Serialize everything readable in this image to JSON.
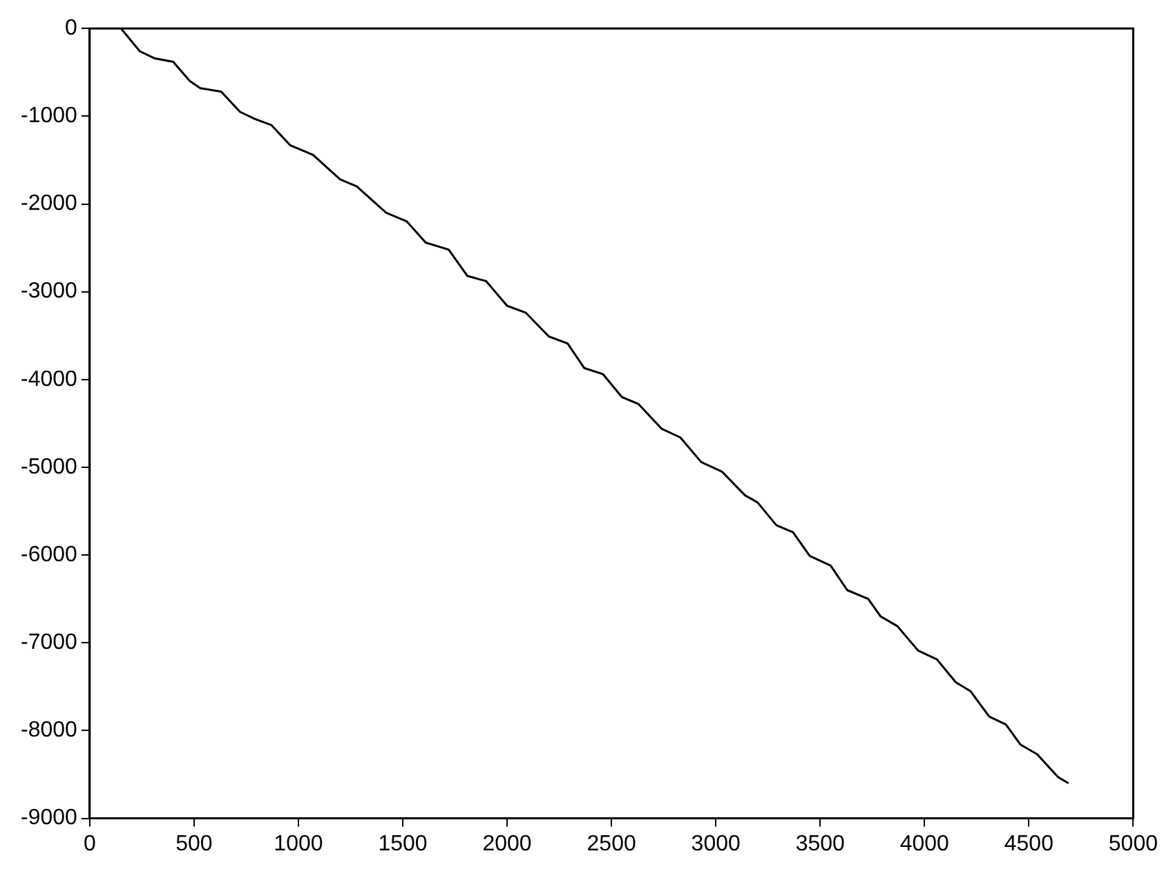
{
  "chart_data": {
    "type": "line",
    "color": "#000000",
    "x": [
      150,
      240,
      310,
      400,
      480,
      530,
      630,
      720,
      790,
      870,
      960,
      1070,
      1200,
      1280,
      1420,
      1520,
      1610,
      1720,
      1810,
      1900,
      2000,
      2090,
      2200,
      2290,
      2370,
      2460,
      2550,
      2630,
      2740,
      2830,
      2930,
      3030,
      3140,
      3200,
      3290,
      3370,
      3450,
      3550,
      3630,
      3730,
      3790,
      3870,
      3970,
      4060,
      4150,
      4220,
      4310,
      4390,
      4460,
      4540,
      4640,
      4690
    ],
    "values": [
      0,
      -260,
      -340,
      -380,
      -600,
      -680,
      -720,
      -950,
      -1030,
      -1100,
      -1330,
      -1440,
      -1720,
      -1800,
      -2100,
      -2200,
      -2440,
      -2520,
      -2820,
      -2880,
      -3160,
      -3240,
      -3510,
      -3590,
      -3870,
      -3940,
      -4200,
      -4280,
      -4560,
      -4660,
      -4940,
      -5050,
      -5320,
      -5400,
      -5660,
      -5740,
      -6010,
      -6120,
      -6400,
      -6500,
      -6700,
      -6810,
      -7090,
      -7190,
      -7450,
      -7550,
      -7840,
      -7930,
      -8160,
      -8270,
      -8530,
      -8600
    ],
    "xlim": [
      0,
      5000
    ],
    "xticks": [
      0,
      500,
      1000,
      1500,
      2000,
      2500,
      3000,
      3500,
      4000,
      4500,
      5000
    ],
    "ylim": [
      -9000,
      0
    ],
    "yticks": [
      -9000,
      -8000,
      -7000,
      -6000,
      -5000,
      -4000,
      -3000,
      -2000,
      -1000,
      0
    ],
    "grid": false,
    "legend": false,
    "marker": "none",
    "line_style": "solid"
  }
}
